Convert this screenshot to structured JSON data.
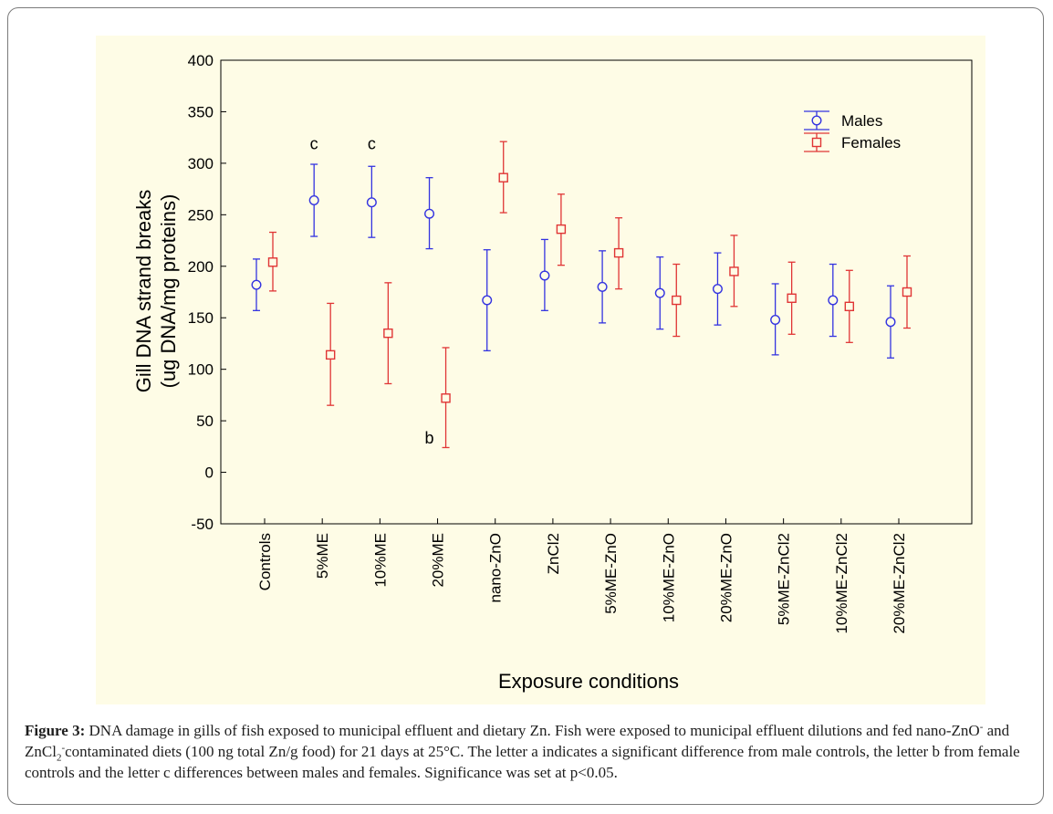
{
  "chart_data": {
    "type": "error-bar",
    "xlabel": "Exposure conditions",
    "ylabel_line1": "Gill DNA strand breaks",
    "ylabel_line2": "(ug DNA/mg proteins)",
    "ylim": [
      -50,
      400
    ],
    "yticks": [
      -50,
      0,
      50,
      100,
      150,
      200,
      250,
      300,
      350,
      400
    ],
    "categories": [
      "Controls",
      "5%ME",
      "10%ME",
      "20%ME",
      "nano-ZnO",
      "ZnCl2",
      "5%ME-ZnO",
      "10%ME-ZnO",
      "20%ME-ZnO",
      "5%ME-ZnCl2",
      "10%ME-ZnCl2",
      "20%ME-ZnCl2"
    ],
    "series": [
      {
        "name": "Males",
        "marker": "circle",
        "color": "#3333e0",
        "values": [
          182,
          264,
          262,
          251,
          167,
          191,
          180,
          174,
          178,
          148,
          167,
          146
        ],
        "lower": [
          157,
          229,
          228,
          217,
          118,
          157,
          145,
          139,
          143,
          114,
          132,
          111
        ],
        "upper": [
          207,
          299,
          297,
          286,
          216,
          226,
          215,
          209,
          213,
          183,
          202,
          181
        ]
      },
      {
        "name": "Females",
        "marker": "square",
        "color": "#e03535",
        "values": [
          204,
          114,
          135,
          72,
          286,
          236,
          213,
          167,
          195,
          169,
          161,
          175
        ],
        "lower": [
          176,
          65,
          86,
          24,
          252,
          201,
          178,
          132,
          161,
          134,
          126,
          140
        ],
        "upper": [
          233,
          164,
          184,
          121,
          321,
          270,
          247,
          202,
          230,
          204,
          196,
          210
        ]
      }
    ],
    "annotations": [
      {
        "text": "c",
        "category": 1,
        "y": 320
      },
      {
        "text": "c",
        "category": 2,
        "y": 320
      },
      {
        "text": "b",
        "category": 3,
        "y": 34
      }
    ],
    "legend_position": "top-right"
  },
  "caption": {
    "label": "Figure 3:",
    "text_1": " DNA damage in gills of fish exposed to municipal effluent and dietary Zn. Fish were exposed to municipal effluent dilutions and fed nano-ZnO",
    "sup_1": "-",
    "text_2": " and ZnCl",
    "sub_1": "2",
    "sup_2": "-",
    "text_3": "contaminated diets (100 ng total Zn/g food) for 21 days at 25°C. The letter a indicates a significant difference from male controls, the letter b from female controls and the letter c differences between males and females. Significance was set at p<0.05."
  },
  "colors": {
    "panel": "#fefce6",
    "frame": "#7a7a7a"
  }
}
